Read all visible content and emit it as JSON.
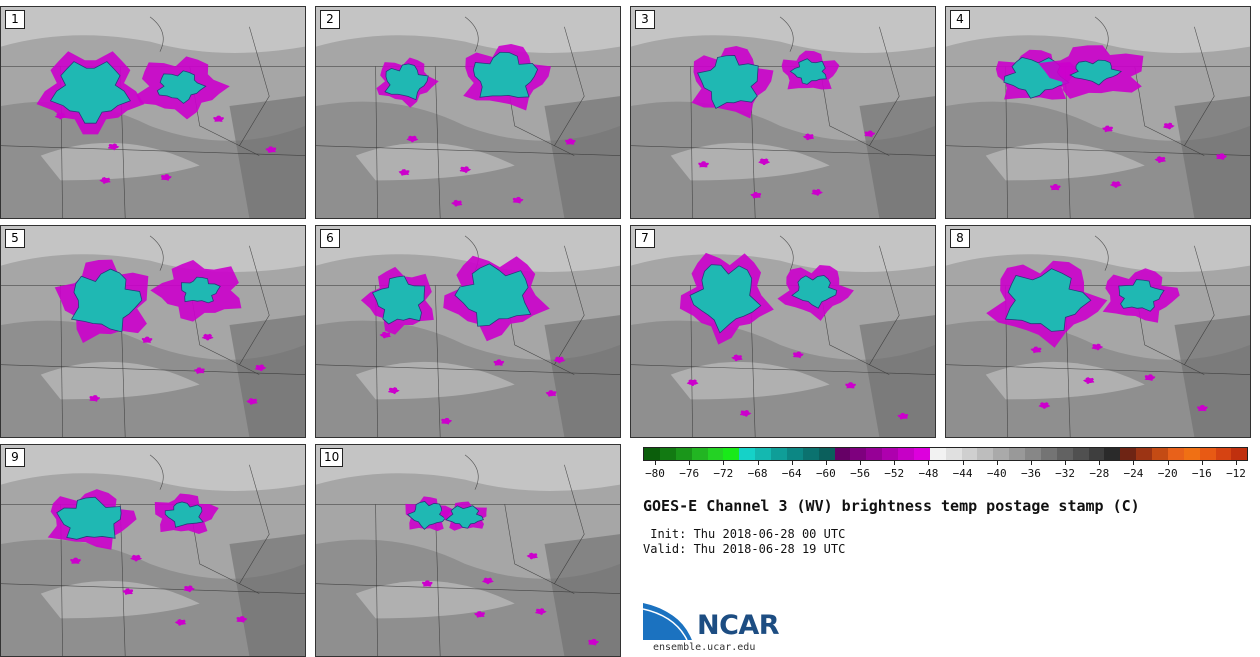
{
  "panels": [
    {
      "label": "1"
    },
    {
      "label": "2"
    },
    {
      "label": "3"
    },
    {
      "label": "4"
    },
    {
      "label": "5"
    },
    {
      "label": "6"
    },
    {
      "label": "7"
    },
    {
      "label": "8"
    },
    {
      "label": "9"
    },
    {
      "label": "10"
    }
  ],
  "colorbar": {
    "colors": [
      "#0b5e0b",
      "#127a12",
      "#1a961a",
      "#22b522",
      "#24d224",
      "#19ea19",
      "#15d2c8",
      "#14b8b0",
      "#0f9e98",
      "#0c8784",
      "#0b726f",
      "#0b5f5c",
      "#660066",
      "#7e007e",
      "#960096",
      "#ae00ae",
      "#c600c6",
      "#dd00dd",
      "#f2f2f2",
      "#e0e0e0",
      "#cfcfcf",
      "#bdbdbd",
      "#aaaaaa",
      "#999999",
      "#878787",
      "#747474",
      "#626262",
      "#505050",
      "#3e3e3e",
      "#2a2a2a",
      "#6e2414",
      "#9c3414",
      "#c44b14",
      "#e8611a",
      "#f07014",
      "#e85a14",
      "#d64312",
      "#c0300e"
    ],
    "ticks": [
      "-80",
      "-76",
      "-72",
      "-68",
      "-64",
      "-60",
      "-56",
      "-52",
      "-48",
      "-44",
      "-40",
      "-36",
      "-32",
      "-28",
      "-24",
      "-20",
      "-16",
      "-12"
    ]
  },
  "title": "GOES-E Channel 3 (WV) brightness temp postage stamp (C)",
  "init_line": " Init: Thu 2018-06-28 00 UTC",
  "valid_line": "Valid: Thu 2018-06-28 19 UTC",
  "logo_text": "NCAR",
  "logo_url": "ensemble.ucar.edu",
  "colors": {
    "cold_cloud": "#1fb8b3",
    "anvil": "#cc00cc",
    "background_gray": "#9a9a9a"
  }
}
